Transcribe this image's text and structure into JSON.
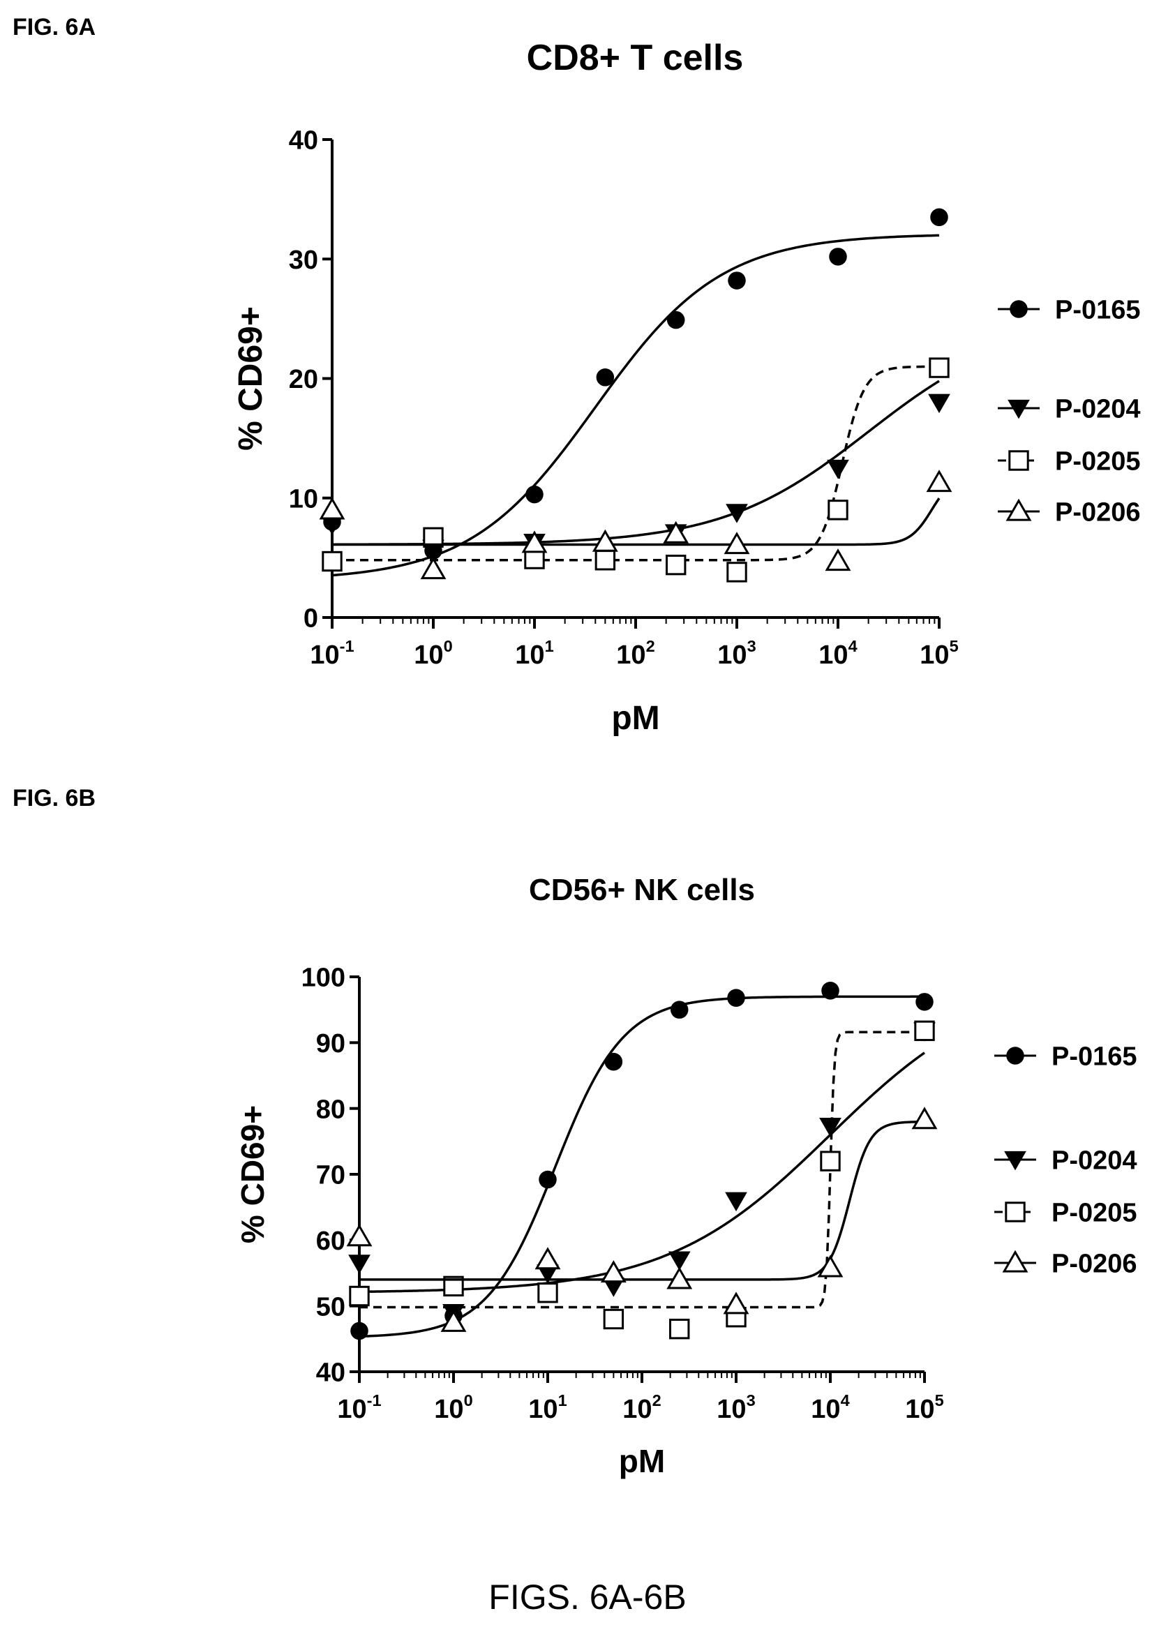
{
  "figures": [
    {
      "label": "FIG. 6A"
    },
    {
      "label": "FIG. 6B"
    }
  ],
  "caption": "FIGS. 6A-6B",
  "chart_data": [
    {
      "type": "scatter",
      "title": "CD8+ T cells",
      "xlabel": "pM",
      "ylabel": "% CD69+",
      "xscale": "log",
      "xlim": [
        0.1,
        100000
      ],
      "ylim": [
        0,
        40
      ],
      "xticks": [
        0.1,
        1,
        10,
        100,
        1000,
        10000,
        100000
      ],
      "xtick_labels": [
        [
          "10",
          "-1"
        ],
        [
          "10",
          "0"
        ],
        [
          "10",
          "1"
        ],
        [
          "10",
          "2"
        ],
        [
          "10",
          "3"
        ],
        [
          "10",
          "4"
        ],
        [
          "10",
          "5"
        ]
      ],
      "yticks": [
        0,
        10,
        20,
        30,
        40
      ],
      "grid": false,
      "legend_position": "right",
      "series": [
        {
          "name": "P-0165",
          "marker": "circle-filled",
          "line": "solid",
          "x": [
            0.1,
            1,
            10,
            50,
            250,
            1000,
            10000,
            100000
          ],
          "y": [
            8,
            5.6,
            10.3,
            20.1,
            24.9,
            28.2,
            30.2,
            33.5
          ],
          "fit": {
            "bottom": 3.1,
            "top": 32.1,
            "ec50": 40,
            "hill": 0.7
          }
        },
        {
          "name": "P-0204",
          "marker": "triangle-down-filled",
          "line": "solid",
          "x": [
            0.1,
            1,
            10,
            50,
            250,
            1000,
            10000,
            100000
          ],
          "y": [
            7.8,
            5.8,
            6.3,
            5.0,
            7.1,
            8.8,
            12.5,
            18.0
          ],
          "fit": {
            "bottom": 6.1,
            "top": 25,
            "ec50": 20000,
            "hill": 0.6
          }
        },
        {
          "name": "P-0205",
          "marker": "square-open",
          "line": "dashed",
          "x": [
            0.1,
            1,
            10,
            50,
            250,
            1000,
            10000,
            100000
          ],
          "y": [
            4.7,
            6.7,
            4.9,
            4.8,
            4.4,
            3.8,
            9.0,
            20.9
          ],
          "fit": {
            "bottom": 4.8,
            "top": 21,
            "ec50": 11000,
            "hill": 4
          }
        },
        {
          "name": "P-0206",
          "marker": "triangle-up-open",
          "line": "solid",
          "x": [
            0.1,
            1,
            10,
            50,
            250,
            1000,
            10000,
            100000
          ],
          "y": [
            9.0,
            4.0,
            6.2,
            6.3,
            7.0,
            6.1,
            4.7,
            11.3
          ],
          "fit": {
            "bottom": 6.1,
            "top": 12,
            "ec50": 85000,
            "hill": 4
          }
        }
      ]
    },
    {
      "type": "scatter",
      "title": "CD56+ NK cells",
      "xlabel": "pM",
      "ylabel": "% CD69+",
      "xscale": "log",
      "xlim": [
        0.1,
        100000
      ],
      "ylim": [
        40,
        100
      ],
      "xticks": [
        0.1,
        1,
        10,
        100,
        1000,
        10000,
        100000
      ],
      "xtick_labels": [
        [
          "10",
          "-1"
        ],
        [
          "10",
          "0"
        ],
        [
          "10",
          "1"
        ],
        [
          "10",
          "2"
        ],
        [
          "10",
          "3"
        ],
        [
          "10",
          "4"
        ],
        [
          "10",
          "5"
        ]
      ],
      "yticks": [
        40,
        50,
        60,
        70,
        80,
        90,
        100
      ],
      "grid": false,
      "legend_position": "right",
      "series": [
        {
          "name": "P-0165",
          "marker": "circle-filled",
          "line": "solid",
          "x": [
            0.1,
            1,
            10,
            50,
            250,
            1000,
            10000,
            100000
          ],
          "y": [
            46.2,
            48.5,
            69.2,
            87.1,
            95.0,
            96.8,
            97.9,
            96.2
          ],
          "fit": {
            "bottom": 45.2,
            "top": 97.0,
            "ec50": 12,
            "hill": 1.2
          }
        },
        {
          "name": "P-0204",
          "marker": "triangle-down-filled",
          "line": "solid",
          "x": [
            0.1,
            1,
            10,
            50,
            250,
            1000,
            10000,
            100000
          ],
          "y": [
            56.5,
            49.0,
            55.0,
            53.0,
            57.0,
            66.0,
            77.3,
            91.8
          ],
          "fit": {
            "bottom": 52.0,
            "top": 100,
            "ec50": 10000,
            "hill": 0.5
          }
        },
        {
          "name": "P-0205",
          "marker": "square-open",
          "line": "dashed",
          "x": [
            0.1,
            1,
            10,
            50,
            250,
            1000,
            10000,
            100000
          ],
          "y": [
            51.5,
            53.0,
            52.0,
            48.0,
            46.5,
            48.3,
            72.0,
            91.8
          ],
          "fit": {
            "bottom": 49.8,
            "top": 91.6,
            "ec50": 10000,
            "hill": 20
          }
        },
        {
          "name": "P-0206",
          "marker": "triangle-up-open",
          "line": "solid",
          "x": [
            0.1,
            1,
            10,
            50,
            250,
            1000,
            10000,
            100000
          ],
          "y": [
            60.5,
            47.5,
            57.0,
            55.0,
            54.0,
            50.2,
            55.8,
            78.3
          ],
          "fit": {
            "bottom": 54.0,
            "top": 78.0,
            "ec50": 16000,
            "hill": 4
          }
        }
      ]
    }
  ]
}
